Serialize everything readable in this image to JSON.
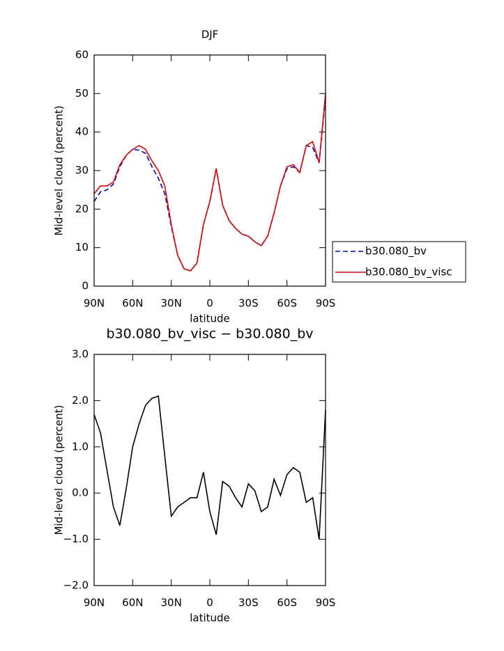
{
  "chart_data": [
    {
      "type": "line",
      "title": "DJF",
      "xlabel": "latitude",
      "ylabel": "Mid-level cloud (percent)",
      "x": [
        90,
        85,
        80,
        75,
        70,
        65,
        60,
        55,
        50,
        45,
        40,
        35,
        30,
        25,
        20,
        15,
        10,
        5,
        0,
        -5,
        -10,
        -15,
        -20,
        -25,
        -30,
        -35,
        -40,
        -45,
        -50,
        -55,
        -60,
        -65,
        -70,
        -75,
        -80,
        -85,
        -90
      ],
      "xlim": [
        90,
        -90
      ],
      "xticks": [
        {
          "value": 90,
          "label": "90N"
        },
        {
          "value": 60,
          "label": "60N"
        },
        {
          "value": 30,
          "label": "30N"
        },
        0,
        {
          "value": -30,
          "label": "30S"
        },
        {
          "value": -60,
          "label": "60S"
        },
        {
          "value": -90,
          "label": "90S"
        }
      ],
      "ylim": [
        0,
        60
      ],
      "yticks": [
        0,
        10,
        20,
        30,
        40,
        50,
        60
      ],
      "legend": "right",
      "series": [
        {
          "name": "b30.080_bv",
          "color": "#0000cc",
          "dash": "dashed",
          "values": [
            22,
            24.5,
            25,
            26.5,
            31,
            34,
            35.5,
            35.3,
            34.5,
            31,
            28,
            24,
            15.5,
            8,
            4.5,
            4,
            6,
            16,
            22,
            30.5,
            21,
            17,
            15,
            13.5,
            13,
            11.5,
            10.5,
            13,
            19,
            26,
            30.5,
            31,
            29.5,
            36.5,
            36,
            32,
            49
          ]
        },
        {
          "name": "b30.080_bv_visc",
          "color": "#ee0000",
          "dash": "solid",
          "values": [
            24,
            26,
            26,
            27,
            31.5,
            34,
            35.5,
            36.5,
            35.5,
            32.5,
            30,
            26,
            16,
            8,
            4.5,
            4,
            6,
            16,
            22,
            30.5,
            21,
            17,
            15,
            13.5,
            13,
            11.5,
            10.5,
            13,
            19,
            26,
            31,
            31.5,
            29.5,
            36.5,
            37.5,
            32,
            50
          ]
        }
      ]
    },
    {
      "type": "line",
      "title": "b30.080_bv_visc − b30.080_bv",
      "xlabel": "latitude",
      "ylabel": "Mid-level cloud (percent)",
      "x": [
        90,
        85,
        80,
        75,
        70,
        65,
        60,
        55,
        50,
        45,
        40,
        35,
        30,
        25,
        20,
        15,
        10,
        5,
        0,
        -5,
        -10,
        -15,
        -20,
        -25,
        -30,
        -35,
        -40,
        -45,
        -50,
        -55,
        -60,
        -65,
        -70,
        -75,
        -80,
        -85,
        -90
      ],
      "xlim": [
        90,
        -90
      ],
      "xticks": [
        {
          "value": 90,
          "label": "90N"
        },
        {
          "value": 60,
          "label": "60N"
        },
        {
          "value": 30,
          "label": "30N"
        },
        0,
        {
          "value": -30,
          "label": "30S"
        },
        {
          "value": -60,
          "label": "60S"
        },
        {
          "value": -90,
          "label": "90S"
        }
      ],
      "ylim": [
        -2,
        3
      ],
      "yticks": [
        {
          "value": -2,
          "label": "−2.0"
        },
        {
          "value": -1,
          "label": "−1.0"
        },
        {
          "value": 0,
          "label": "0.0"
        },
        {
          "value": 1,
          "label": "1.0"
        },
        {
          "value": 2,
          "label": "2.0"
        },
        {
          "value": 3,
          "label": "3.0"
        }
      ],
      "series": [
        {
          "color": "#000000",
          "dash": "solid",
          "values": [
            1.7,
            1.3,
            0.5,
            -0.3,
            -0.7,
            0.1,
            1.0,
            1.5,
            1.9,
            2.05,
            2.1,
            0.8,
            -0.5,
            -0.3,
            -0.2,
            -0.1,
            -0.1,
            0.45,
            -0.4,
            -0.9,
            0.25,
            0.15,
            -0.1,
            -0.3,
            0.2,
            0.05,
            -0.4,
            -0.3,
            0.3,
            -0.05,
            0.4,
            0.55,
            0.45,
            -0.2,
            -0.1,
            -1.0,
            1.8
          ]
        }
      ]
    }
  ]
}
